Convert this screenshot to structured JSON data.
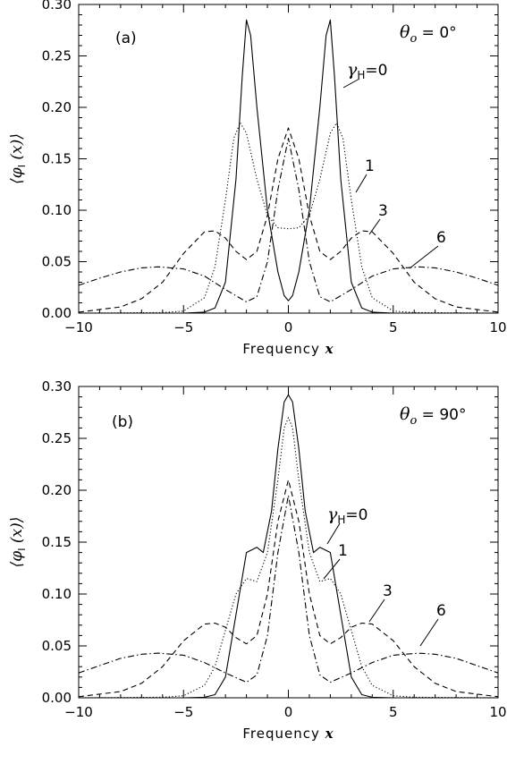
{
  "chart_data": [
    {
      "type": "line",
      "panel_label": "(a)",
      "angle_symbol": "θ",
      "angle_subscript": "o",
      "angle_value": "= 0°",
      "xlabel": "Frequency",
      "xlabel_var": "x",
      "ylabel": "⟨φ",
      "ylabel_sub": "I",
      "ylabel_tail": " (x)⟩",
      "xlim": [
        -10,
        10
      ],
      "ylim": [
        0,
        0.3
      ],
      "xticks": [
        -10,
        -5,
        0,
        5,
        10
      ],
      "xtick_labels": [
        "−10",
        "−5",
        "0",
        "5",
        "10"
      ],
      "yticks": [
        0,
        0.05,
        0.1,
        0.15,
        0.2,
        0.25,
        0.3
      ],
      "ytick_labels": [
        "0.00",
        "0.05",
        "0.10",
        "0.15",
        "0.20",
        "0.25",
        "0.30"
      ],
      "grid": false,
      "series": [
        {
          "name": "γH=0",
          "label_main": "γ",
          "label_sub": "H",
          "label_tail": "=0",
          "style": "solid",
          "x": [
            -10,
            -5,
            -4,
            -3.5,
            -3,
            -2.5,
            -2.2,
            -2,
            -1.8,
            -1.5,
            -1,
            -0.5,
            -0.2,
            0,
            0.2,
            0.5,
            1,
            1.5,
            1.8,
            2,
            2.2,
            2.5,
            3,
            3.5,
            4,
            5,
            10
          ],
          "values": [
            0,
            0,
            0.001,
            0.005,
            0.03,
            0.13,
            0.23,
            0.285,
            0.27,
            0.2,
            0.1,
            0.04,
            0.017,
            0.012,
            0.017,
            0.04,
            0.1,
            0.2,
            0.27,
            0.285,
            0.23,
            0.13,
            0.03,
            0.005,
            0.001,
            0,
            0
          ]
        },
        {
          "name": "1",
          "label_main": "1",
          "style": "dotted",
          "x": [
            -10,
            -6,
            -5,
            -4,
            -3.5,
            -3,
            -2.6,
            -2.3,
            -2,
            -1.5,
            -1,
            -0.5,
            0,
            0.5,
            1,
            1.5,
            2,
            2.3,
            2.6,
            3,
            3.5,
            4,
            5,
            6,
            10
          ],
          "values": [
            0,
            0.0005,
            0.002,
            0.015,
            0.045,
            0.11,
            0.17,
            0.185,
            0.175,
            0.13,
            0.095,
            0.083,
            0.082,
            0.083,
            0.095,
            0.13,
            0.175,
            0.185,
            0.17,
            0.11,
            0.045,
            0.015,
            0.002,
            0.0005,
            0
          ]
        },
        {
          "name": "3",
          "label_main": "3",
          "style": "dashed",
          "x": [
            -10,
            -8,
            -7,
            -6,
            -5,
            -4,
            -3.5,
            -3,
            -2.5,
            -2,
            -1.5,
            -1,
            -0.5,
            0,
            0.5,
            1,
            1.5,
            2,
            2.5,
            3,
            3.5,
            4,
            5,
            6,
            7,
            8,
            10
          ],
          "values": [
            0.001,
            0.006,
            0.014,
            0.03,
            0.058,
            0.079,
            0.08,
            0.073,
            0.06,
            0.052,
            0.06,
            0.095,
            0.15,
            0.18,
            0.15,
            0.095,
            0.06,
            0.052,
            0.06,
            0.073,
            0.08,
            0.079,
            0.058,
            0.03,
            0.014,
            0.006,
            0.001
          ]
        },
        {
          "name": "6",
          "label_main": "6",
          "style": "dashdot",
          "x": [
            -10,
            -9,
            -8,
            -7,
            -6.2,
            -5,
            -4,
            -3,
            -2,
            -1.5,
            -1,
            -0.5,
            0,
            0.5,
            1,
            1.5,
            2,
            3,
            4,
            5,
            6.2,
            7,
            8,
            9,
            10
          ],
          "values": [
            0.027,
            0.034,
            0.04,
            0.044,
            0.045,
            0.043,
            0.036,
            0.023,
            0.011,
            0.016,
            0.05,
            0.12,
            0.17,
            0.12,
            0.05,
            0.016,
            0.011,
            0.023,
            0.036,
            0.043,
            0.045,
            0.044,
            0.04,
            0.034,
            0.027
          ]
        }
      ]
    },
    {
      "type": "line",
      "panel_label": "(b)",
      "angle_symbol": "θ",
      "angle_subscript": "o",
      "angle_value": "= 90°",
      "xlabel": "Frequency",
      "xlabel_var": "x",
      "ylabel": "⟨φ",
      "ylabel_sub": "I",
      "ylabel_tail": " (x)⟩",
      "xlim": [
        -10,
        10
      ],
      "ylim": [
        0,
        0.3
      ],
      "xticks": [
        -10,
        -5,
        0,
        5,
        10
      ],
      "xtick_labels": [
        "−10",
        "−5",
        "0",
        "5",
        "10"
      ],
      "yticks": [
        0,
        0.05,
        0.1,
        0.15,
        0.2,
        0.25,
        0.3
      ],
      "ytick_labels": [
        "0.00",
        "0.05",
        "0.10",
        "0.15",
        "0.20",
        "0.25",
        "0.30"
      ],
      "grid": false,
      "series": [
        {
          "name": "γH=0",
          "label_main": "γ",
          "label_sub": "H",
          "label_tail": "=0",
          "style": "solid",
          "x": [
            -10,
            -5,
            -4,
            -3.5,
            -3,
            -2.5,
            -2,
            -1.5,
            -1.2,
            -0.8,
            -0.5,
            -0.2,
            0,
            0.2,
            0.5,
            0.8,
            1.2,
            1.5,
            2,
            2.5,
            3,
            3.5,
            4,
            5,
            10
          ],
          "values": [
            0,
            0,
            0.0005,
            0.003,
            0.02,
            0.08,
            0.14,
            0.145,
            0.14,
            0.18,
            0.24,
            0.285,
            0.292,
            0.285,
            0.24,
            0.18,
            0.14,
            0.145,
            0.14,
            0.08,
            0.02,
            0.003,
            0.0005,
            0,
            0
          ]
        },
        {
          "name": "1",
          "label_main": "1",
          "style": "dotted",
          "x": [
            -10,
            -6,
            -5,
            -4,
            -3.5,
            -3,
            -2.5,
            -2,
            -1.5,
            -1,
            -0.5,
            -0.2,
            0,
            0.2,
            0.5,
            1,
            1.5,
            2,
            2.5,
            3,
            3.5,
            4,
            5,
            6,
            10
          ],
          "values": [
            0,
            0.0005,
            0.002,
            0.012,
            0.03,
            0.065,
            0.1,
            0.115,
            0.112,
            0.14,
            0.21,
            0.26,
            0.27,
            0.26,
            0.21,
            0.14,
            0.112,
            0.115,
            0.1,
            0.065,
            0.03,
            0.012,
            0.002,
            0.0005,
            0
          ]
        },
        {
          "name": "3",
          "label_main": "3",
          "style": "dashed",
          "x": [
            -10,
            -8,
            -7,
            -6,
            -5,
            -4,
            -3.5,
            -3,
            -2.5,
            -2,
            -1.5,
            -1,
            -0.5,
            0,
            0.5,
            1,
            1.5,
            2,
            2.5,
            3,
            3.5,
            4,
            5,
            6,
            7,
            8,
            10
          ],
          "values": [
            0.001,
            0.006,
            0.014,
            0.03,
            0.055,
            0.071,
            0.072,
            0.068,
            0.058,
            0.052,
            0.06,
            0.1,
            0.17,
            0.21,
            0.17,
            0.1,
            0.06,
            0.052,
            0.058,
            0.068,
            0.072,
            0.071,
            0.055,
            0.03,
            0.014,
            0.006,
            0.001
          ]
        },
        {
          "name": "6",
          "label_main": "6",
          "style": "dashdot",
          "x": [
            -10,
            -9,
            -8,
            -7,
            -6.2,
            -5,
            -4,
            -3,
            -2,
            -1.5,
            -1,
            -0.5,
            0,
            0.5,
            1,
            1.5,
            2,
            3,
            4,
            5,
            6.2,
            7,
            8,
            9,
            10
          ],
          "values": [
            0.024,
            0.031,
            0.038,
            0.042,
            0.043,
            0.041,
            0.034,
            0.024,
            0.015,
            0.022,
            0.06,
            0.14,
            0.195,
            0.14,
            0.06,
            0.022,
            0.015,
            0.024,
            0.034,
            0.041,
            0.043,
            0.042,
            0.038,
            0.031,
            0.024
          ]
        }
      ]
    }
  ]
}
